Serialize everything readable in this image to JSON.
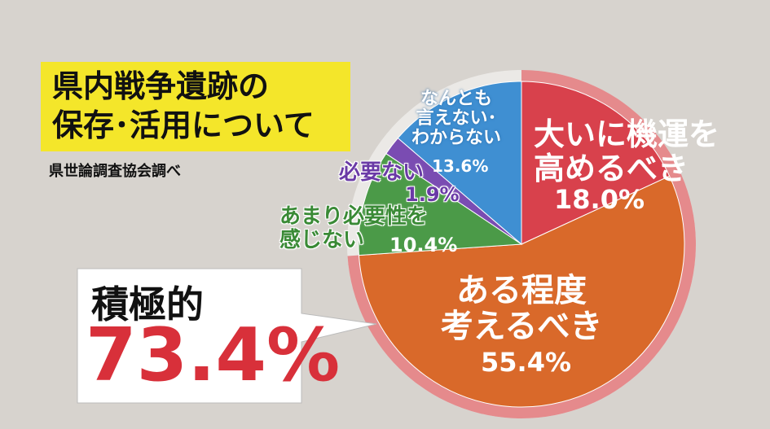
{
  "header": {
    "title": "県内戦争遺跡の\n保存･活用について",
    "source": "県世論調査協会調べ"
  },
  "callout": {
    "label": "積極的",
    "value": "73.4%"
  },
  "chart_data": {
    "type": "pie",
    "categories": [
      "大いに機運を\n高めるべき",
      "ある程度\n考えるべき",
      "あまり必要性を\n感じない",
      "必要ない",
      "なんとも\n言えない･\nわからない"
    ],
    "values": [
      18.0,
      55.4,
      10.4,
      1.9,
      13.6
    ],
    "value_labels": [
      "18.0%",
      "55.4%",
      "10.4%",
      "1.9%",
      "13.6%"
    ],
    "colors": [
      "#d8414c",
      "#d9692a",
      "#4b9a48",
      "#7a4cb2",
      "#3f8fd2"
    ]
  }
}
